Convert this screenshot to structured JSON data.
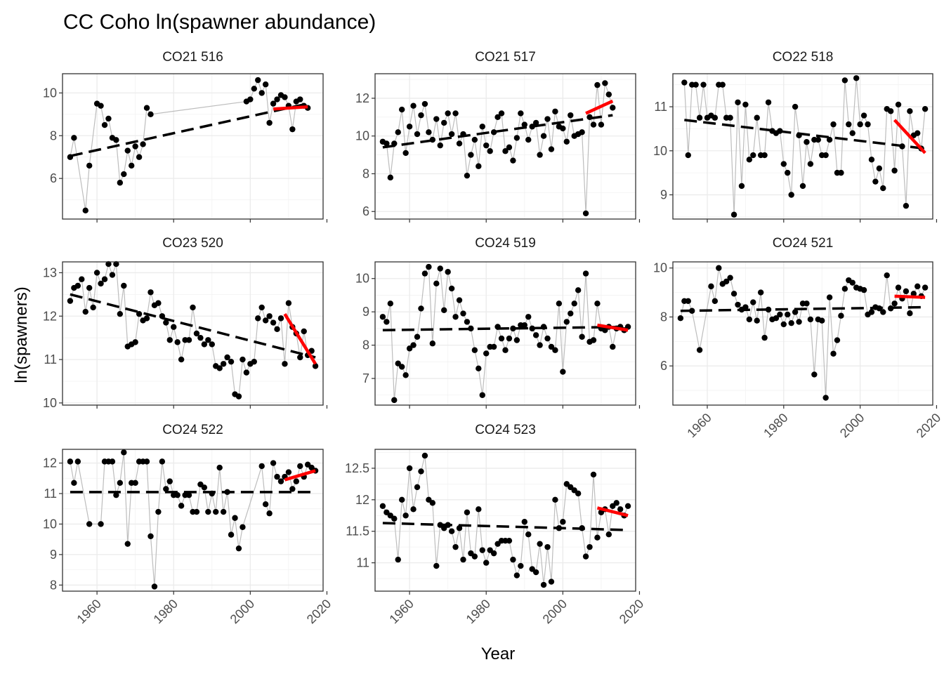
{
  "title": "CC Coho ln(spawner abundance)",
  "xlabel": "Year",
  "ylabel": "ln(spawners)",
  "chart_data": [
    {
      "panel": "CO21 516",
      "type": "line",
      "xlim": [
        1951,
        2019
      ],
      "ylim": [
        4.1,
        10.9
      ],
      "yticks": [
        6,
        8,
        10
      ],
      "xticks": [
        1960,
        1980,
        2000,
        2020
      ],
      "x_tick_labels_shown": false,
      "x": [
        1953,
        1954,
        1957,
        1958,
        1960,
        1961,
        1962,
        1963,
        1964,
        1965,
        1966,
        1967,
        1968,
        1969,
        1970,
        1971,
        1972,
        1973,
        1974,
        1999,
        2000,
        2001,
        2002,
        2003,
        2004,
        2005,
        2006,
        2007,
        2008,
        2009,
        2010,
        2011,
        2012,
        2013,
        2014,
        2015
      ],
      "y": [
        7.0,
        7.9,
        4.5,
        6.6,
        9.5,
        9.4,
        8.5,
        8.8,
        7.9,
        7.8,
        5.8,
        6.2,
        7.3,
        6.6,
        7.5,
        7.0,
        7.6,
        9.3,
        9.0,
        9.6,
        9.7,
        10.2,
        10.6,
        10.0,
        10.4,
        8.6,
        9.5,
        9.7,
        9.9,
        9.8,
        9.4,
        8.3,
        9.6,
        9.7,
        9.4,
        9.3
      ],
      "trend_full": {
        "x": [
          1953,
          2015
        ],
        "y": [
          7.05,
          9.5
        ]
      },
      "trend_recent": {
        "x": [
          2006,
          2015
        ],
        "y": [
          9.25,
          9.35
        ]
      }
    },
    {
      "panel": "CO21 517",
      "type": "line",
      "xlim": [
        1951,
        2019
      ],
      "ylim": [
        5.6,
        13.3
      ],
      "yticks": [
        6,
        8,
        10,
        12
      ],
      "xticks": [
        1960,
        1980,
        2000,
        2020
      ],
      "x_tick_labels_shown": false,
      "x": [
        1953,
        1954,
        1955,
        1956,
        1957,
        1958,
        1959,
        1960,
        1961,
        1962,
        1963,
        1964,
        1965,
        1966,
        1967,
        1968,
        1969,
        1970,
        1971,
        1972,
        1973,
        1974,
        1975,
        1976,
        1977,
        1978,
        1979,
        1980,
        1981,
        1982,
        1983,
        1984,
        1985,
        1986,
        1987,
        1988,
        1989,
        1990,
        1991,
        1992,
        1993,
        1994,
        1995,
        1996,
        1997,
        1998,
        1999,
        2000,
        2001,
        2002,
        2003,
        2004,
        2005,
        2006,
        2007,
        2008,
        2009,
        2010,
        2011,
        2012,
        2013
      ],
      "y": [
        9.7,
        9.6,
        7.8,
        9.6,
        10.2,
        11.4,
        9.1,
        10.5,
        11.6,
        10.1,
        11.1,
        11.7,
        10.2,
        9.8,
        10.9,
        9.5,
        10.7,
        11.2,
        10.1,
        11.2,
        9.6,
        10.1,
        7.9,
        9.0,
        9.8,
        8.4,
        10.5,
        9.5,
        9.2,
        10.2,
        11.0,
        11.2,
        9.2,
        9.4,
        8.7,
        9.9,
        11.2,
        10.6,
        9.8,
        10.5,
        10.7,
        9.0,
        10.0,
        10.9,
        9.3,
        11.3,
        10.5,
        10.4,
        9.7,
        11.1,
        10.0,
        10.1,
        10.2,
        5.9,
        11.0,
        10.6,
        12.7,
        10.6,
        12.8,
        12.2,
        11.5
      ],
      "trend_full": {
        "x": [
          1953,
          2013
        ],
        "y": [
          9.4,
          11.1
        ]
      },
      "trend_recent": {
        "x": [
          2006,
          2013
        ],
        "y": [
          11.2,
          11.85
        ]
      }
    },
    {
      "panel": "CO22 518",
      "type": "line",
      "xlim": [
        1951,
        2019
      ],
      "ylim": [
        8.45,
        11.75
      ],
      "yticks": [
        9,
        10,
        11
      ],
      "xticks": [
        1960,
        1980,
        2000,
        2020
      ],
      "x_tick_labels_shown": false,
      "x": [
        1954,
        1955,
        1956,
        1957,
        1958,
        1959,
        1960,
        1961,
        1962,
        1963,
        1964,
        1965,
        1966,
        1967,
        1968,
        1969,
        1970,
        1971,
        1972,
        1973,
        1974,
        1975,
        1976,
        1977,
        1978,
        1979,
        1980,
        1981,
        1982,
        1983,
        1984,
        1985,
        1986,
        1987,
        1988,
        1989,
        1990,
        1991,
        1992,
        1993,
        1994,
        1995,
        1996,
        1997,
        1998,
        1999,
        2000,
        2001,
        2002,
        2003,
        2004,
        2005,
        2006,
        2007,
        2008,
        2009,
        2010,
        2011,
        2012,
        2013,
        2014,
        2015,
        2016,
        2017
      ],
      "y": [
        11.55,
        9.9,
        11.5,
        11.5,
        10.75,
        11.5,
        10.75,
        10.8,
        10.75,
        11.5,
        11.5,
        10.75,
        10.75,
        8.55,
        11.1,
        9.2,
        11.05,
        9.8,
        9.9,
        10.75,
        9.9,
        9.9,
        11.1,
        10.45,
        10.4,
        10.45,
        9.7,
        9.5,
        9.0,
        11.0,
        10.35,
        9.2,
        10.2,
        9.7,
        10.25,
        10.25,
        9.9,
        9.9,
        10.25,
        10.6,
        9.5,
        9.5,
        11.6,
        10.6,
        10.4,
        11.65,
        10.6,
        10.8,
        10.6,
        9.8,
        9.3,
        9.6,
        9.15,
        10.95,
        10.9,
        9.55,
        11.05,
        10.1,
        8.75,
        10.9,
        10.35,
        10.4,
        10.05,
        10.95
      ],
      "trend_full": {
        "x": [
          1954,
          2017
        ],
        "y": [
          10.7,
          10.05
        ]
      },
      "trend_recent": {
        "x": [
          2009,
          2017
        ],
        "y": [
          10.7,
          9.95
        ]
      }
    },
    {
      "panel": "CO23 520",
      "type": "line",
      "xlim": [
        1951,
        2019
      ],
      "ylim": [
        9.95,
        13.25
      ],
      "yticks": [
        10,
        11,
        12,
        13
      ],
      "xticks": [
        1960,
        1980,
        2000,
        2020
      ],
      "x_tick_labels_shown": false,
      "x": [
        1953,
        1954,
        1955,
        1956,
        1957,
        1958,
        1959,
        1960,
        1961,
        1962,
        1963,
        1964,
        1965,
        1966,
        1967,
        1968,
        1969,
        1970,
        1971,
        1972,
        1973,
        1974,
        1975,
        1976,
        1977,
        1978,
        1979,
        1980,
        1981,
        1982,
        1983,
        1984,
        1985,
        1986,
        1987,
        1988,
        1989,
        1990,
        1991,
        1992,
        1993,
        1994,
        1995,
        1996,
        1997,
        1998,
        1999,
        2000,
        2001,
        2002,
        2003,
        2004,
        2005,
        2006,
        2007,
        2008,
        2009,
        2010,
        2011,
        2012,
        2013,
        2014,
        2015,
        2016,
        2017
      ],
      "y": [
        12.35,
        12.65,
        12.7,
        12.85,
        12.1,
        12.65,
        12.2,
        13.0,
        12.75,
        12.85,
        13.2,
        12.95,
        13.2,
        12.05,
        12.7,
        11.3,
        11.35,
        11.4,
        12.05,
        11.9,
        11.95,
        12.55,
        12.25,
        12.3,
        12.0,
        11.85,
        11.45,
        11.75,
        11.4,
        11.0,
        11.45,
        11.45,
        12.2,
        11.6,
        11.5,
        11.35,
        11.45,
        11.35,
        10.85,
        10.8,
        10.9,
        11.05,
        10.95,
        10.2,
        10.15,
        11.0,
        10.7,
        10.9,
        10.95,
        11.95,
        12.2,
        11.9,
        12.0,
        11.85,
        11.7,
        11.95,
        10.9,
        12.3,
        11.75,
        11.6,
        11.05,
        11.65,
        11.1,
        11.2,
        10.85
      ],
      "trend_full": {
        "x": [
          1953,
          2017
        ],
        "y": [
          12.5,
          11.05
        ]
      },
      "trend_recent": {
        "x": [
          2009,
          2017
        ],
        "y": [
          12.05,
          10.9
        ]
      }
    },
    {
      "panel": "CO24 519",
      "type": "line",
      "xlim": [
        1951,
        2019
      ],
      "ylim": [
        6.2,
        10.5
      ],
      "yticks": [
        7,
        8,
        9,
        10
      ],
      "xticks": [
        1960,
        1980,
        2000,
        2020
      ],
      "x_tick_labels_shown": false,
      "x": [
        1953,
        1954,
        1955,
        1956,
        1957,
        1958,
        1959,
        1960,
        1961,
        1962,
        1963,
        1964,
        1965,
        1966,
        1967,
        1968,
        1969,
        1970,
        1971,
        1972,
        1973,
        1974,
        1975,
        1976,
        1977,
        1978,
        1979,
        1980,
        1981,
        1982,
        1983,
        1984,
        1985,
        1986,
        1987,
        1988,
        1989,
        1990,
        1991,
        1992,
        1993,
        1994,
        1995,
        1996,
        1997,
        1998,
        1999,
        2000,
        2001,
        2002,
        2003,
        2004,
        2005,
        2006,
        2007,
        2008,
        2009,
        2010,
        2011,
        2012,
        2013,
        2014,
        2015,
        2016,
        2017
      ],
      "y": [
        8.85,
        8.7,
        9.25,
        6.35,
        7.45,
        7.35,
        7.1,
        7.9,
        8.0,
        8.25,
        9.1,
        10.15,
        10.35,
        8.05,
        9.85,
        10.3,
        9.05,
        10.2,
        9.7,
        8.85,
        9.35,
        8.95,
        8.7,
        8.5,
        7.85,
        7.3,
        6.5,
        7.75,
        7.95,
        7.95,
        8.55,
        8.2,
        7.85,
        8.2,
        8.5,
        8.15,
        8.6,
        8.6,
        8.85,
        8.5,
        8.3,
        8.0,
        8.55,
        8.2,
        7.95,
        7.85,
        9.25,
        7.2,
        8.7,
        8.95,
        9.25,
        9.65,
        8.25,
        10.15,
        8.1,
        8.15,
        9.25,
        8.5,
        8.45,
        8.55,
        7.95,
        8.5,
        8.55,
        8.45,
        8.55
      ],
      "trend_full": {
        "x": [
          1953,
          2017
        ],
        "y": [
          8.45,
          8.55
        ]
      },
      "trend_recent": {
        "x": [
          2009,
          2017
        ],
        "y": [
          8.6,
          8.45
        ]
      }
    },
    {
      "panel": "CO24 521",
      "type": "line",
      "xlim": [
        1951,
        2019
      ],
      "ylim": [
        4.4,
        10.25
      ],
      "yticks": [
        6,
        8,
        10
      ],
      "xticks": [
        1960,
        1980,
        2000,
        2020
      ],
      "x_tick_labels_shown": true,
      "x": [
        1953,
        1954,
        1955,
        1956,
        1958,
        1961,
        1962,
        1963,
        1964,
        1965,
        1966,
        1967,
        1968,
        1969,
        1970,
        1971,
        1972,
        1973,
        1974,
        1975,
        1976,
        1977,
        1978,
        1979,
        1980,
        1981,
        1982,
        1983,
        1984,
        1985,
        1986,
        1987,
        1988,
        1989,
        1990,
        1991,
        1992,
        1993,
        1994,
        1995,
        1996,
        1997,
        1998,
        1999,
        2000,
        2001,
        2002,
        2003,
        2004,
        2005,
        2006,
        2007,
        2008,
        2009,
        2010,
        2011,
        2012,
        2013,
        2014,
        2015,
        2016,
        2017
      ],
      "y": [
        7.95,
        8.65,
        8.65,
        8.25,
        6.65,
        9.25,
        8.65,
        10.0,
        9.35,
        9.45,
        9.6,
        8.95,
        8.5,
        8.3,
        8.4,
        7.9,
        8.6,
        7.85,
        9.0,
        7.15,
        8.3,
        7.9,
        7.95,
        8.1,
        7.7,
        8.1,
        7.75,
        8.2,
        7.8,
        8.55,
        8.55,
        7.9,
        5.65,
        7.9,
        7.85,
        4.7,
        8.8,
        6.5,
        7.05,
        8.05,
        9.15,
        9.5,
        9.4,
        9.2,
        9.15,
        9.1,
        8.1,
        8.2,
        8.4,
        8.35,
        8.2,
        9.7,
        8.35,
        8.55,
        9.2,
        8.75,
        9.05,
        8.15,
        8.95,
        9.25,
        8.85,
        9.2
      ],
      "trend_full": {
        "x": [
          1953,
          2017
        ],
        "y": [
          8.25,
          8.4
        ]
      },
      "trend_recent": {
        "x": [
          2009,
          2017
        ],
        "y": [
          8.85,
          8.8
        ]
      }
    },
    {
      "panel": "CO24 522",
      "type": "line",
      "xlim": [
        1951,
        2019
      ],
      "ylim": [
        7.8,
        12.45
      ],
      "yticks": [
        8,
        9,
        10,
        11,
        12
      ],
      "xticks": [
        1960,
        1980,
        2000,
        2020
      ],
      "x_tick_labels_shown": true,
      "x": [
        1953,
        1954,
        1955,
        1958,
        1961,
        1962,
        1963,
        1964,
        1965,
        1966,
        1967,
        1968,
        1969,
        1970,
        1971,
        1972,
        1973,
        1974,
        1975,
        1976,
        1977,
        1978,
        1979,
        1980,
        1981,
        1982,
        1983,
        1984,
        1985,
        1986,
        1987,
        1988,
        1989,
        1990,
        1991,
        1992,
        1993,
        1994,
        1995,
        1996,
        1997,
        1998,
        2003,
        2004,
        2005,
        2006,
        2007,
        2008,
        2009,
        2010,
        2011,
        2012,
        2013,
        2014,
        2015,
        2016,
        2017
      ],
      "y": [
        12.05,
        11.35,
        12.05,
        10.0,
        10.0,
        12.05,
        12.05,
        12.05,
        10.95,
        11.35,
        12.35,
        9.35,
        11.35,
        11.35,
        12.05,
        12.05,
        12.05,
        9.6,
        7.95,
        10.4,
        12.05,
        11.15,
        11.4,
        10.95,
        10.95,
        10.6,
        10.95,
        10.95,
        10.4,
        10.4,
        11.3,
        11.2,
        10.4,
        11.0,
        10.4,
        11.85,
        10.4,
        11.05,
        9.65,
        10.2,
        9.2,
        9.9,
        11.9,
        10.65,
        10.35,
        12.0,
        11.55,
        11.4,
        11.55,
        11.7,
        11.15,
        11.4,
        11.9,
        11.55,
        11.95,
        11.85,
        11.75
      ],
      "trend_full": {
        "x": [
          1953,
          2017
        ],
        "y": [
          11.05,
          11.05
        ]
      },
      "trend_recent": {
        "x": [
          2009,
          2017
        ],
        "y": [
          11.45,
          11.75
        ]
      }
    },
    {
      "panel": "CO24 523",
      "type": "line",
      "xlim": [
        1951,
        2019
      ],
      "ylim": [
        10.55,
        12.8
      ],
      "yticks": [
        11.0,
        11.5,
        12.0,
        12.5
      ],
      "xticks": [
        1960,
        1980,
        2000,
        2020
      ],
      "x_tick_labels_shown": true,
      "x": [
        1953,
        1954,
        1955,
        1956,
        1957,
        1958,
        1959,
        1960,
        1961,
        1962,
        1963,
        1964,
        1965,
        1966,
        1967,
        1968,
        1969,
        1970,
        1971,
        1972,
        1973,
        1974,
        1975,
        1976,
        1977,
        1978,
        1979,
        1980,
        1981,
        1982,
        1983,
        1984,
        1985,
        1986,
        1987,
        1988,
        1989,
        1990,
        1991,
        1992,
        1993,
        1994,
        1995,
        1996,
        1997,
        1998,
        1999,
        2000,
        2001,
        2002,
        2003,
        2004,
        2005,
        2006,
        2007,
        2008,
        2009,
        2010,
        2011,
        2012,
        2013,
        2014,
        2015,
        2016,
        2017
      ],
      "y": [
        11.9,
        11.8,
        11.75,
        11.7,
        11.05,
        12.0,
        11.75,
        12.5,
        11.85,
        12.2,
        12.45,
        12.7,
        12.0,
        11.95,
        10.95,
        11.6,
        11.55,
        11.6,
        11.5,
        11.25,
        11.55,
        11.05,
        11.8,
        11.15,
        11.1,
        11.85,
        11.2,
        11.0,
        11.2,
        11.15,
        11.3,
        11.35,
        11.35,
        11.35,
        11.05,
        10.8,
        10.95,
        11.65,
        11.45,
        10.9,
        10.85,
        11.3,
        10.65,
        11.25,
        10.7,
        12.0,
        11.55,
        11.65,
        12.25,
        12.2,
        12.15,
        12.1,
        11.55,
        11.1,
        11.25,
        12.4,
        11.4,
        11.8,
        11.85,
        11.45,
        11.9,
        11.95,
        11.85,
        11.75,
        11.9
      ],
      "trend_full": {
        "x": [
          1953,
          2017
        ],
        "y": [
          11.63,
          11.52
        ]
      },
      "trend_recent": {
        "x": [
          2009,
          2017
        ],
        "y": [
          11.87,
          11.75
        ]
      }
    }
  ]
}
